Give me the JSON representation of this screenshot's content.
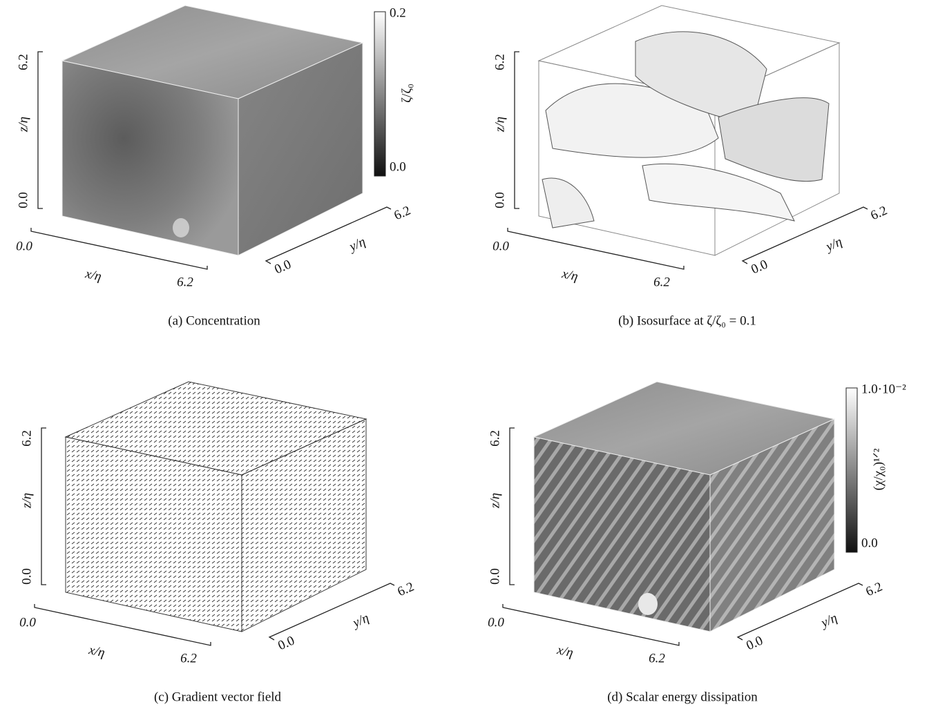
{
  "panels": [
    {
      "caption": "(a) Concentration",
      "axes": {
        "x": {
          "label": "x/η",
          "ticks": [
            "0.0",
            "6.2"
          ]
        },
        "y": {
          "label": "y/η",
          "ticks": [
            "0.0",
            "6.2"
          ]
        },
        "z": {
          "label": "z/η",
          "ticks": [
            "0.0",
            "6.2"
          ]
        }
      },
      "colorbar": {
        "label": "ζ/ζ₀",
        "ticks": [
          "0.2",
          "0.0"
        ]
      }
    },
    {
      "caption": "(b) Isosurface at ζ/ζ₀ = 0.1",
      "axes": {
        "x": {
          "label": "x/η",
          "ticks": [
            "0.0",
            "6.2"
          ]
        },
        "y": {
          "label": "y/η",
          "ticks": [
            "0.0",
            "6.2"
          ]
        },
        "z": {
          "label": "z/η",
          "ticks": [
            "0.0",
            "6.2"
          ]
        }
      }
    },
    {
      "caption": "(c) Gradient vector field",
      "axes": {
        "x": {
          "label": "x/η",
          "ticks": [
            "0.0",
            "6.2"
          ]
        },
        "y": {
          "label": "y/η",
          "ticks": [
            "0.0",
            "6.2"
          ]
        },
        "z": {
          "label": "z/η",
          "ticks": [
            "0.0",
            "6.2"
          ]
        }
      }
    },
    {
      "caption": "(d) Scalar energy dissipation",
      "axes": {
        "x": {
          "label": "x/η",
          "ticks": [
            "0.0",
            "6.2"
          ]
        },
        "y": {
          "label": "y/η",
          "ticks": [
            "0.0",
            "6.2"
          ]
        },
        "z": {
          "label": "z/η",
          "ticks": [
            "0.0",
            "6.2"
          ]
        }
      },
      "colorbar": {
        "label": "(χ/χ₀)¹ᐟ²",
        "ticks": [
          "1.0·10⁻²",
          "0.0"
        ]
      }
    }
  ]
}
